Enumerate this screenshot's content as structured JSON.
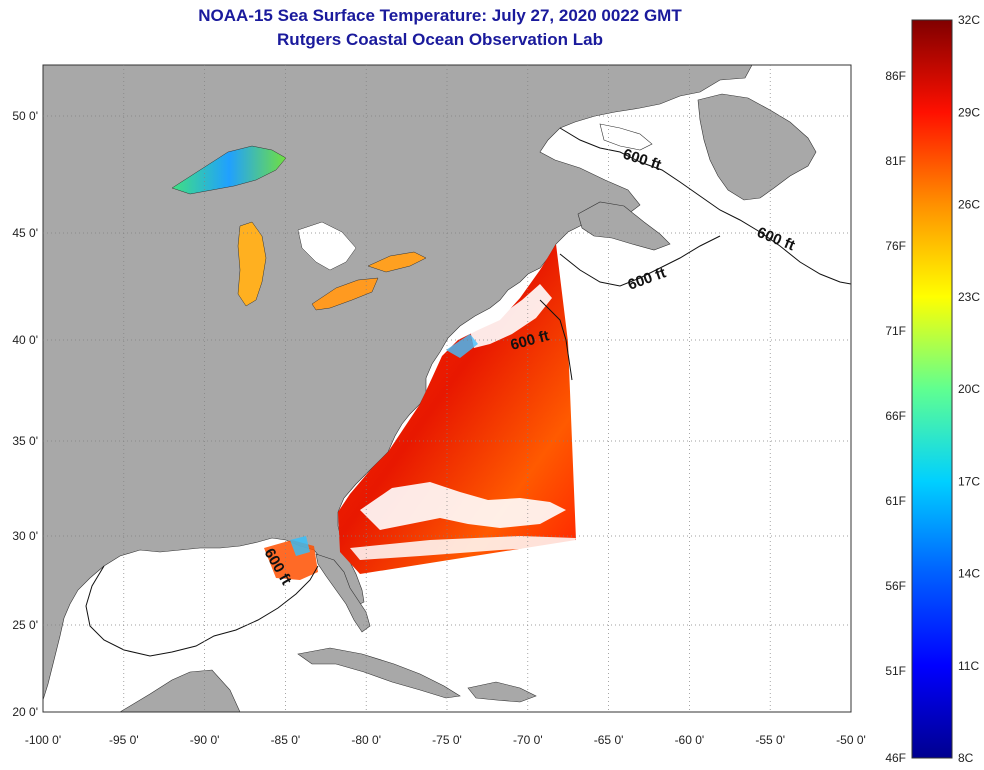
{
  "title": {
    "line1": "NOAA-15 Sea Surface Temperature:  July 27, 2020 0022 GMT",
    "line2": "Rutgers Coastal Ocean Observation Lab"
  },
  "map": {
    "lon_ticks": [
      "-100 0'",
      "-95 0'",
      "-90 0'",
      "-85 0'",
      "-80 0'",
      "-75 0'",
      "-70 0'",
      "-65 0'",
      "-60 0'",
      "-55 0'",
      "-50 0'"
    ],
    "lat_ticks": [
      "50 0'",
      "45 0'",
      "40 0'",
      "35 0'",
      "30 0'",
      "25 0'",
      "20 0'"
    ],
    "contour_labels": [
      "600 ft",
      "600 ft",
      "600 ft",
      "600 ft",
      "600 ft"
    ],
    "colors": {
      "land": "#a8a8a8",
      "ocean": "#ffffff",
      "grid": "#808080"
    }
  },
  "colorbar": {
    "celsius_labels": [
      "32C",
      "29C",
      "26C",
      "23C",
      "20C",
      "17C",
      "14C",
      "11C",
      "8C"
    ],
    "fahrenheit_labels": [
      "86F",
      "81F",
      "76F",
      "71F",
      "66F",
      "61F",
      "56F",
      "51F",
      "46F"
    ],
    "colors": [
      "#7f0000",
      "#ff0000",
      "#ff8000",
      "#ffff00",
      "#80ff80",
      "#00ffff",
      "#0080ff",
      "#0000ff",
      "#00008f"
    ]
  }
}
